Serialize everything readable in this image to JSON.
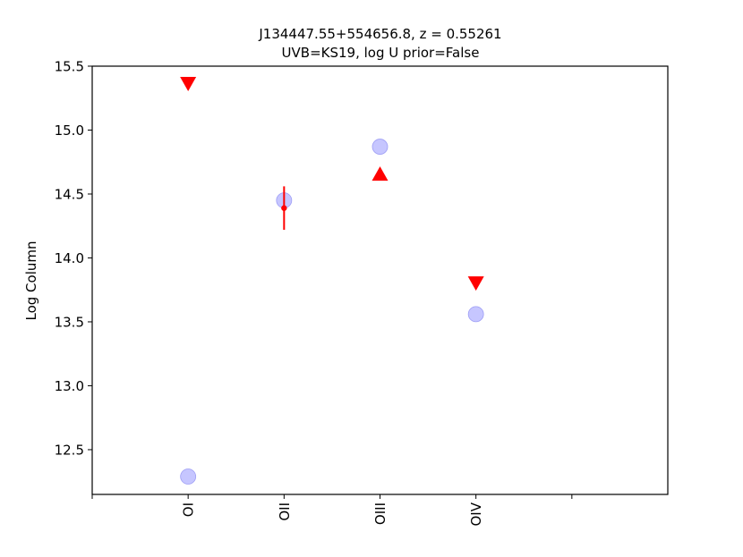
{
  "chart_data": {
    "type": "scatter",
    "title": "J134447.55+554656.8, $z = 0.55261$",
    "title_display": "J134447.55+554656.8, z = 0.55261",
    "subtitle": "UVB=KS19, log U prior=False",
    "xlabel": "",
    "ylabel": "Log Column",
    "categories": [
      "OI",
      "OII",
      "OIII",
      "OIV"
    ],
    "ylim": [
      12.15,
      15.5
    ],
    "yticks": [
      12.5,
      13.0,
      13.5,
      14.0,
      14.5,
      15.0,
      15.5
    ],
    "ytick_labels": [
      "12.5",
      "13.0",
      "13.5",
      "14.0",
      "14.5",
      "15.0",
      "15.5"
    ],
    "grid": false,
    "series": [
      {
        "kind": "model",
        "color": "#b3b3ff",
        "marker": "circle",
        "values": [
          12.29,
          14.45,
          14.87,
          13.56
        ]
      },
      {
        "kind": "observed",
        "color": "#ff0000",
        "points": [
          {
            "category": "OI",
            "type": "upper_limit",
            "value": 15.36
          },
          {
            "category": "OII",
            "type": "detection",
            "value": 14.39,
            "err_low": 0.17,
            "err_high": 0.17
          },
          {
            "category": "OIII",
            "type": "lower_limit",
            "value": 14.66
          },
          {
            "category": "OIV",
            "type": "upper_limit",
            "value": 13.8
          }
        ]
      }
    ]
  }
}
